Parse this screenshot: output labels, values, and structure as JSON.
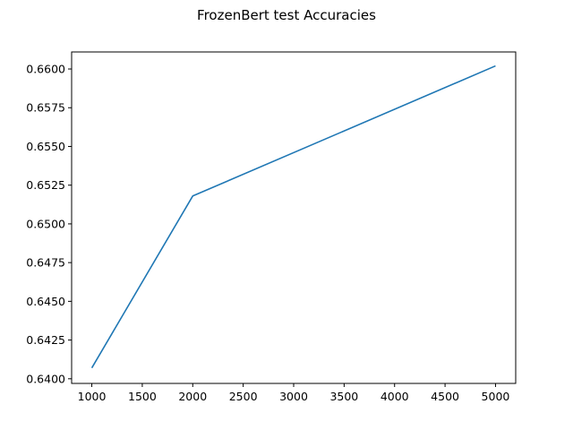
{
  "chart_data": {
    "type": "line",
    "title": "FrozenBert test Accuracies",
    "xlabel": "",
    "ylabel": "",
    "x": [
      1000,
      2000,
      5000
    ],
    "series": [
      {
        "values": [
          0.6407,
          0.6518,
          0.6602
        ],
        "color": "#1f77b4"
      }
    ],
    "xlim": [
      800,
      5200
    ],
    "ylim": [
      0.6397,
      0.6611
    ],
    "xticks": [
      1000,
      1500,
      2000,
      2500,
      3000,
      3500,
      4000,
      4500,
      5000
    ],
    "xtick_labels": [
      "1000",
      "1500",
      "2000",
      "2500",
      "3000",
      "3500",
      "4000",
      "4500",
      "5000"
    ],
    "yticks": [
      0.64,
      0.6425,
      0.645,
      0.6475,
      0.65,
      0.6525,
      0.655,
      0.6575,
      0.66
    ],
    "ytick_labels": [
      "0.6400",
      "0.6425",
      "0.6450",
      "0.6475",
      "0.6500",
      "0.6525",
      "0.6550",
      "0.6575",
      "0.6600"
    ],
    "grid": false,
    "legend": "none"
  }
}
